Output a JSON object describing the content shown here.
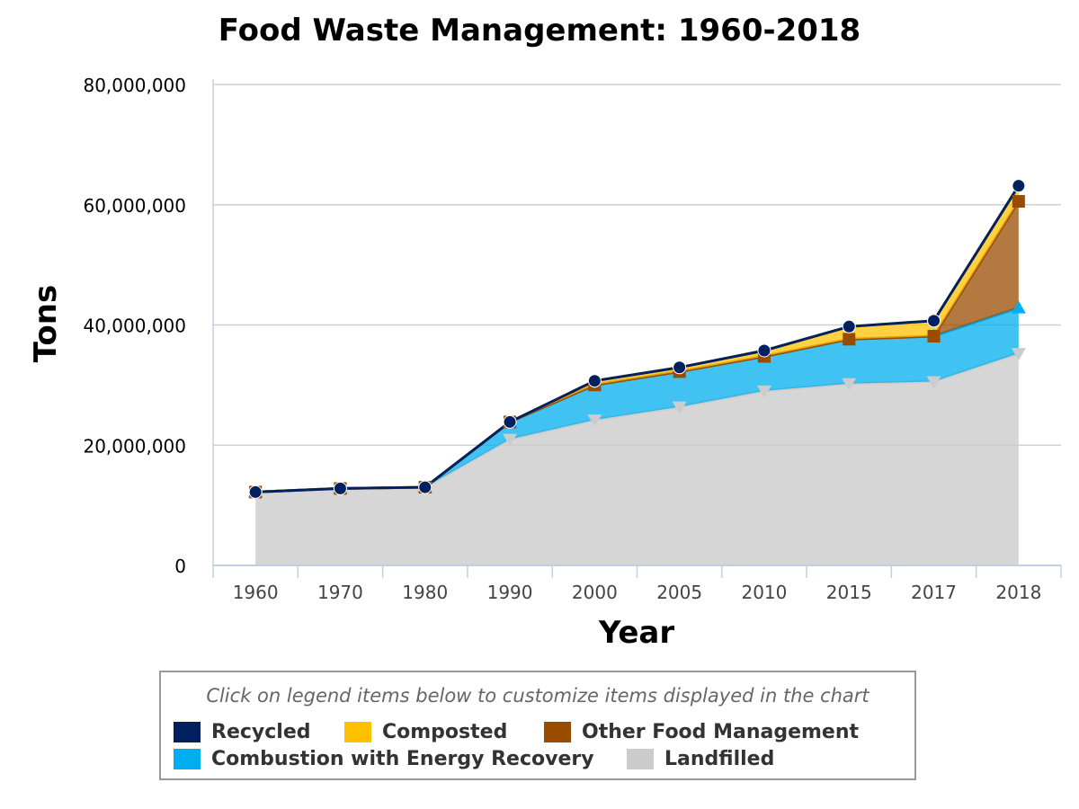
{
  "chart_data": {
    "type": "area",
    "stacked": true,
    "title": "Food Waste Management: 1960-2018",
    "xlabel": "Year",
    "ylabel": "Tons",
    "ylim": [
      0,
      80000000
    ],
    "yticks": [
      "0",
      "20,000,000",
      "40,000,000",
      "60,000,000",
      "80,000,000"
    ],
    "ytick_values": [
      0,
      20000000,
      40000000,
      60000000,
      80000000
    ],
    "grid": true,
    "categories": [
      "1960",
      "1970",
      "1980",
      "1990",
      "2000",
      "2005",
      "2010",
      "2015",
      "2017",
      "2018"
    ],
    "series": [
      {
        "name": "Landfilled",
        "color": "#cccccc",
        "marker": "triangle-down",
        "values": [
          12200000,
          12800000,
          13000000,
          20990000,
          24200000,
          26370000,
          29030000,
          30250000,
          30580000,
          35280000
        ]
      },
      {
        "name": "Combustion with Energy Recovery",
        "color": "#00aeef",
        "marker": "triangle",
        "values": [
          0,
          0,
          0,
          2870000,
          5820000,
          5870000,
          5740000,
          7380000,
          7550000,
          7550000
        ]
      },
      {
        "name": "Other Food Management",
        "color": "#994c00",
        "marker": "square",
        "values": [
          0,
          0,
          0,
          0,
          0,
          0,
          0,
          0,
          0,
          17730000
        ]
      },
      {
        "name": "Composted",
        "color": "#ffc000",
        "marker": "diamond",
        "values": [
          0,
          0,
          0,
          0,
          680000,
          690000,
          970000,
          2100000,
          2570000,
          2590000
        ]
      },
      {
        "name": "Recycled",
        "color": "#002060",
        "marker": "circle",
        "values": [
          0,
          0,
          0,
          0,
          0,
          0,
          0,
          0,
          0,
          0
        ]
      }
    ],
    "legend_position": "bottom"
  },
  "legend": {
    "note": "Click on legend items below to customize items displayed in the chart",
    "items": [
      "Recycled",
      "Composted",
      "Other Food Management",
      "Combustion with Energy Recovery",
      "Landfilled"
    ]
  }
}
